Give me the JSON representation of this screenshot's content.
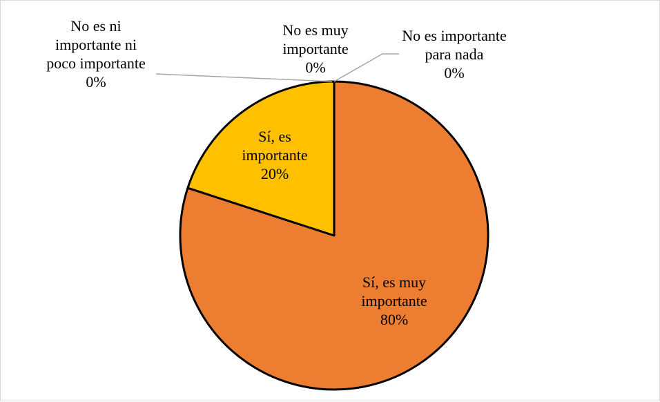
{
  "chart_data": {
    "type": "pie",
    "start_angle_deg": 0,
    "direction": "clockwise",
    "colors": {
      "border": "#000000",
      "leader": "#a6a6a6",
      "frame": "#d9d9d9"
    },
    "slices": [
      {
        "label_lines": [
          "Sí, es muy",
          "importante"
        ],
        "percent_text": "80%",
        "value": 80,
        "color": "#ED7D31",
        "label_placement": "inside"
      },
      {
        "label_lines": [
          "Sí, es",
          "importante"
        ],
        "percent_text": "20%",
        "value": 20,
        "color": "#FFC000",
        "label_placement": "inside"
      },
      {
        "label_lines": [
          "No es ni",
          "importante ni",
          "poco importante"
        ],
        "percent_text": "0%",
        "value": 0,
        "color": "#A5A5A5",
        "label_placement": "outside-left"
      },
      {
        "label_lines": [
          "No es muy",
          "importante"
        ],
        "percent_text": "0%",
        "value": 0,
        "color": "#4472C4",
        "label_placement": "outside-top"
      },
      {
        "label_lines": [
          "No es importante",
          "para nada"
        ],
        "percent_text": "0%",
        "value": 0,
        "color": "#5B9BD5",
        "label_placement": "outside-right"
      }
    ]
  }
}
